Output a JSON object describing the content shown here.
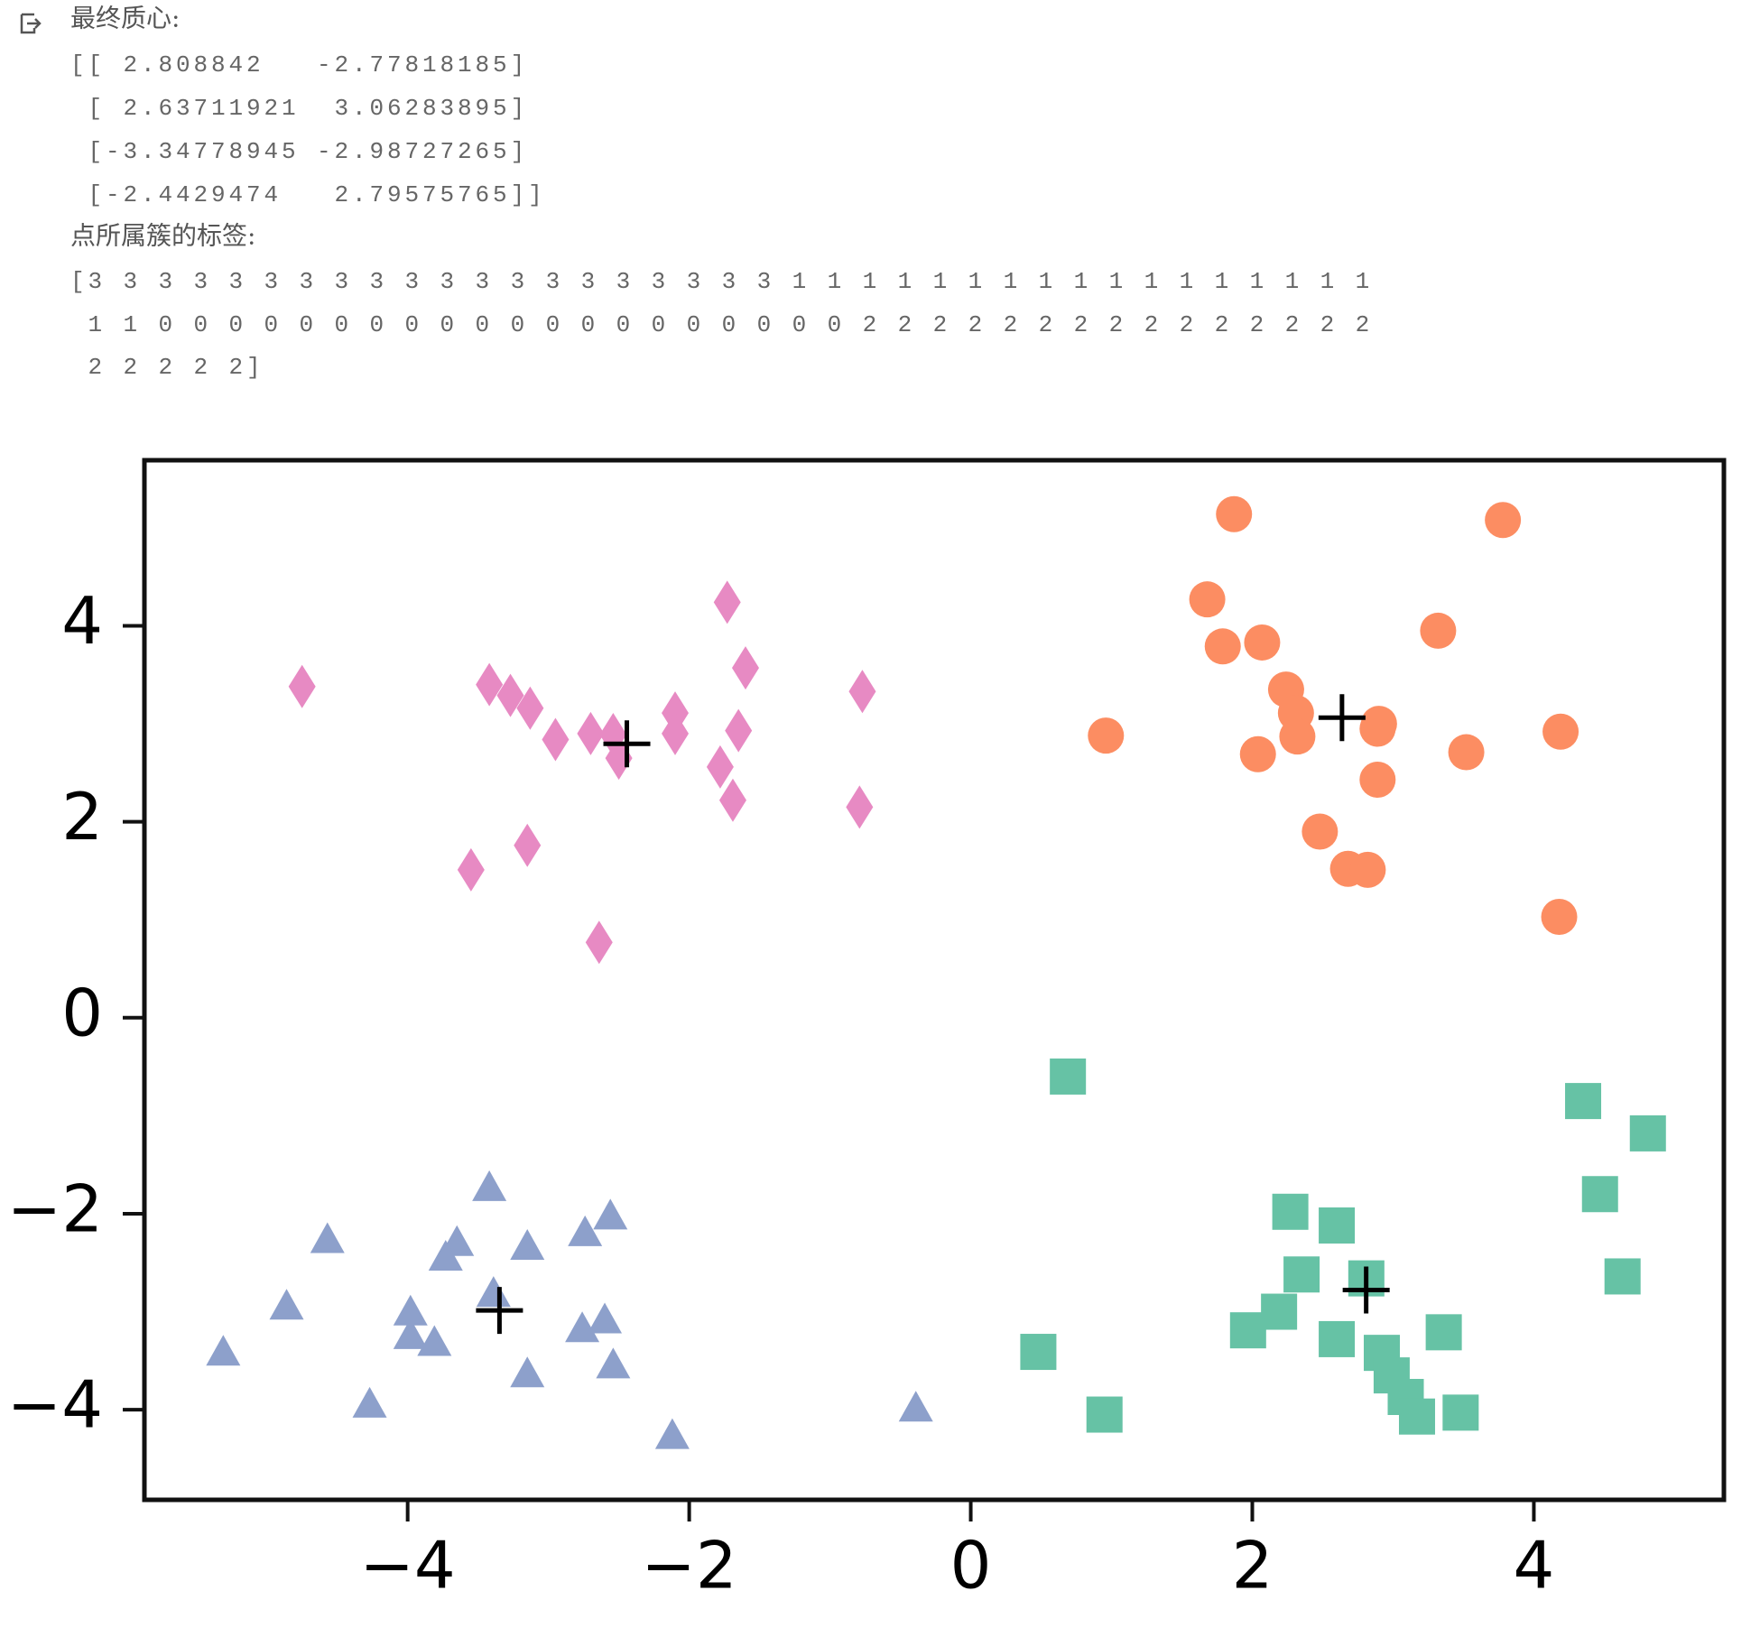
{
  "output": {
    "centroid_heading": "最终质心:",
    "centroid_lines": [
      "[[ 2.808842   -2.77818185]",
      " [ 2.63711921  3.06283895]",
      " [-3.34778945 -2.98727265]",
      " [-2.4429474   2.79575765]]"
    ],
    "label_heading": "点所属簇的标签:",
    "label_lines": [
      "[3 3 3 3 3 3 3 3 3 3 3 3 3 3 3 3 3 3 3 3 1 1 1 1 1 1 1 1 1 1 1 1 1 1 1 1 1",
      " 1 1 0 0 0 0 0 0 0 0 0 0 0 0 0 0 0 0 0 0 0 0 2 2 2 2 2 2 2 2 2 2 2 2 2 2 2",
      " 2 2 2 2 2]"
    ]
  },
  "chart_data": {
    "type": "scatter",
    "xlim": [
      -5.87,
      5.35
    ],
    "ylim": [
      -4.92,
      5.69
    ],
    "xticks": [
      {
        "value": -4,
        "label": "−4"
      },
      {
        "value": -2,
        "label": "−2"
      },
      0,
      2,
      4
    ],
    "yticks": [
      {
        "value": -4,
        "label": "−4"
      },
      {
        "value": -2,
        "label": "−2"
      },
      0,
      2,
      4
    ],
    "grid": false,
    "series": [
      {
        "color": "#66c2a5",
        "marker": "square",
        "x": [
          0.69,
          4.35,
          4.81,
          4.47,
          2.27,
          2.6,
          2.35,
          2.81,
          4.63,
          2.19,
          1.97,
          3.36,
          2.6,
          0.48,
          2.92,
          2.99,
          3.09,
          3.17,
          3.48,
          0.95
        ],
        "y": [
          -0.6,
          -0.85,
          -1.18,
          -1.8,
          -1.98,
          -2.12,
          -2.62,
          -2.66,
          -2.64,
          -3.0,
          -3.19,
          -3.21,
          -3.28,
          -3.41,
          -3.42,
          -3.65,
          -3.87,
          -4.07,
          -4.03,
          -4.05
        ]
      },
      {
        "color": "#fc8d62",
        "marker": "circle",
        "x": [
          1.87,
          3.78,
          1.68,
          1.79,
          2.07,
          3.32,
          2.24,
          2.31,
          2.32,
          0.96,
          2.04,
          2.89,
          3.52,
          4.19,
          2.89,
          2.48,
          2.68,
          2.82,
          4.18,
          2.9
        ],
        "y": [
          5.14,
          5.08,
          4.27,
          3.79,
          3.83,
          3.95,
          3.35,
          3.11,
          2.87,
          2.88,
          2.69,
          2.95,
          2.71,
          2.92,
          2.43,
          1.9,
          1.52,
          1.51,
          1.03,
          3.0
        ]
      },
      {
        "color": "#8da0cb",
        "marker": "triangle",
        "x": [
          -3.42,
          -2.56,
          -4.57,
          -2.74,
          -3.65,
          -3.73,
          -3.15,
          -4.86,
          -3.39,
          -3.98,
          -2.6,
          -3.98,
          -2.76,
          -3.81,
          -5.31,
          -2.54,
          -3.15,
          -4.27,
          -0.39,
          -2.12
        ],
        "y": [
          -1.76,
          -2.05,
          -2.29,
          -2.22,
          -2.32,
          -2.47,
          -2.36,
          -2.97,
          -2.84,
          -3.03,
          -3.11,
          -3.27,
          -3.2,
          -3.34,
          -3.44,
          -3.57,
          -3.66,
          -3.97,
          -4.01,
          -4.29
        ]
      },
      {
        "color": "#e78ac3",
        "marker": "diamond",
        "x": [
          -1.73,
          -1.6,
          -4.75,
          -3.42,
          -3.27,
          -3.13,
          -0.77,
          -2.1,
          -2.7,
          -2.54,
          -2.95,
          -1.65,
          -2.1,
          -2.5,
          -1.78,
          -1.69,
          -0.79,
          -3.15,
          -3.55,
          -2.64
        ],
        "y": [
          4.24,
          3.57,
          3.38,
          3.4,
          3.29,
          3.16,
          3.33,
          3.11,
          2.9,
          2.89,
          2.84,
          2.93,
          2.9,
          2.65,
          2.56,
          2.22,
          2.15,
          1.76,
          1.51,
          0.77
        ]
      },
      {
        "color": "#000000",
        "marker": "plus",
        "x": [
          2.808842,
          2.63711921,
          -3.34778945,
          -2.4429474
        ],
        "y": [
          -2.77818185,
          3.06283895,
          -2.98727265,
          2.79575765
        ]
      }
    ]
  }
}
